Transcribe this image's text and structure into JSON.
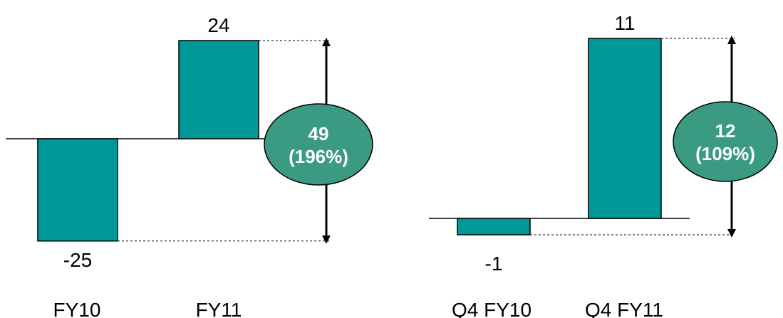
{
  "colors": {
    "bar": "#009999",
    "bar_stroke": "#000000",
    "bubble": "#3a9a82",
    "bubble_text": "#ffffff",
    "baseline": "#000000",
    "guide": "#000000"
  },
  "chart_data": [
    {
      "type": "bar",
      "categories": [
        "FY10",
        "FY11"
      ],
      "values": [
        -25,
        24
      ],
      "value_labels": [
        "-25",
        "24"
      ],
      "difference": {
        "value_label": "49",
        "percent_label": "(196%)"
      }
    },
    {
      "type": "bar",
      "categories": [
        "Q4 FY10",
        "Q4 FY11"
      ],
      "values": [
        -1,
        11
      ],
      "value_labels": [
        "-1",
        "11"
      ],
      "difference": {
        "value_label": "12",
        "percent_label": "(109%)"
      }
    }
  ]
}
